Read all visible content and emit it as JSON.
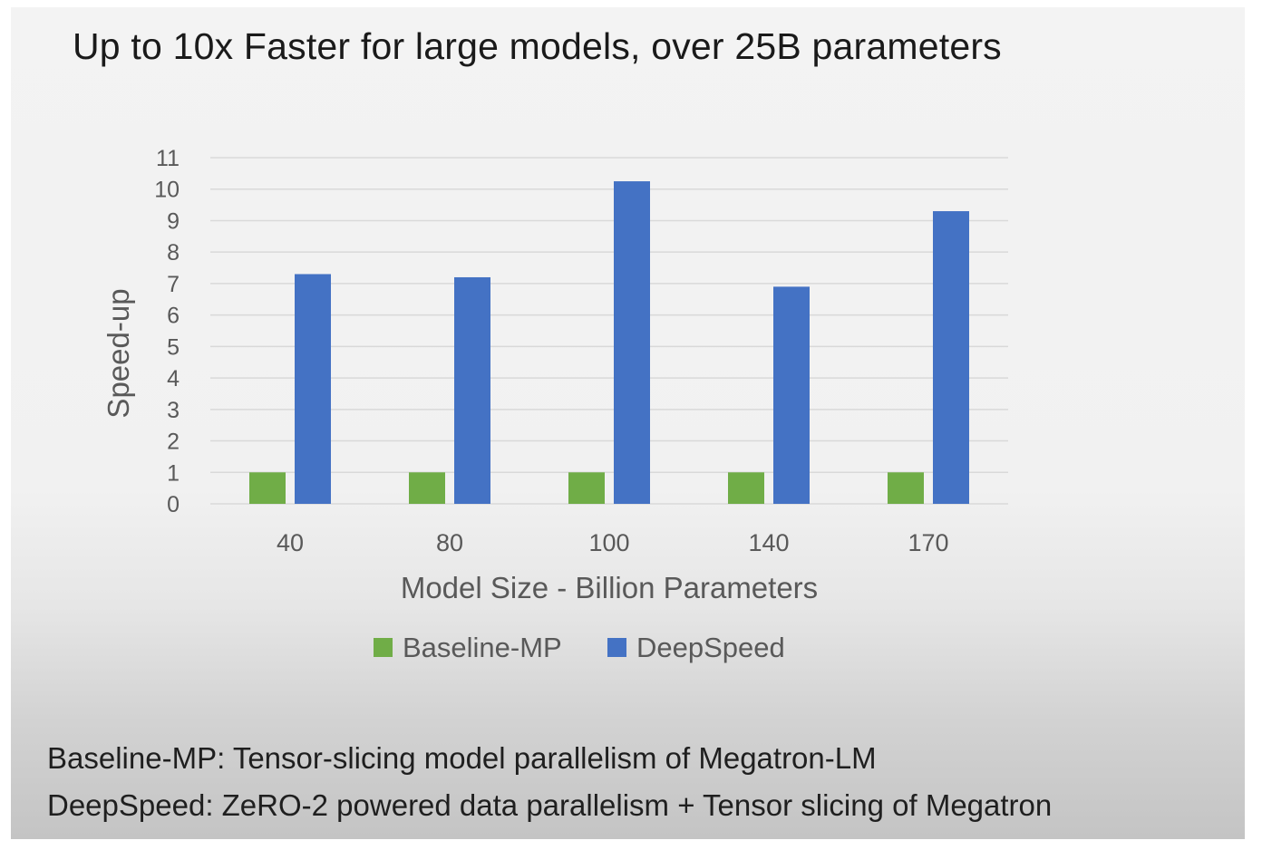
{
  "slide": {
    "title": "Up to 10x Faster for large models, over 25B parameters",
    "footnotes": [
      "Baseline-MP: Tensor-slicing model parallelism of Megatron-LM",
      "DeepSpeed: ZeRO-2 powered data parallelism + Tensor slicing of Megatron"
    ]
  },
  "chart_data": {
    "type": "bar",
    "title": "",
    "xlabel": "Model Size - Billion Parameters",
    "ylabel": "Speed-up",
    "categories": [
      "40",
      "80",
      "100",
      "140",
      "170"
    ],
    "series": [
      {
        "name": "Baseline-MP",
        "color": "#70ad47",
        "values": [
          1,
          1,
          1,
          1,
          1
        ]
      },
      {
        "name": "DeepSpeed",
        "color": "#4472c4",
        "values": [
          7.3,
          7.2,
          10.25,
          6.9,
          9.3
        ]
      }
    ],
    "ylim": [
      0,
      11
    ],
    "yticks": [
      0,
      1,
      2,
      3,
      4,
      5,
      6,
      7,
      8,
      9,
      10,
      11
    ],
    "grid": true,
    "legend_position": "bottom"
  }
}
